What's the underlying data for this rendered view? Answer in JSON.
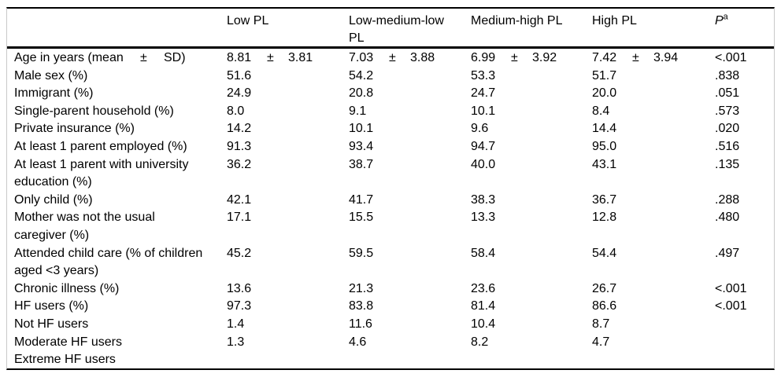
{
  "header": {
    "cols": [
      "Low PL",
      "Low-medium-low PL",
      "Medium-high PL",
      "High PL"
    ],
    "p_label": "P",
    "p_superscript": "a"
  },
  "rows": [
    {
      "type": "meansd",
      "label_main": "Age in years (mean",
      "label_pm": "±",
      "label_sd": "SD)",
      "cells": [
        {
          "mean": "8.81",
          "pm": "±",
          "sd": "3.81"
        },
        {
          "mean": "7.03",
          "pm": "±",
          "sd": "3.88"
        },
        {
          "mean": "6.99",
          "pm": "±",
          "sd": "3.92"
        },
        {
          "mean": "7.42",
          "pm": "±",
          "sd": "3.94"
        }
      ],
      "p": "<.001"
    },
    {
      "label": "Male sex (%)",
      "values": [
        "51.6",
        "54.2",
        "53.3",
        "51.7"
      ],
      "p": ".838"
    },
    {
      "label": "Immigrant (%)",
      "values": [
        "24.9",
        "20.8",
        "24.7",
        "20.0"
      ],
      "p": ".051"
    },
    {
      "label": "Single-parent household (%)",
      "values": [
        "8.0",
        "9.1",
        "10.1",
        "8.4"
      ],
      "p": ".573"
    },
    {
      "label": "Private insurance (%)",
      "values": [
        "14.2",
        "10.1",
        "9.6",
        "14.4"
      ],
      "p": ".020"
    },
    {
      "label": "At least 1 parent employed (%)",
      "values": [
        "91.3",
        "93.4",
        "94.7",
        "95.0"
      ],
      "p": ".516"
    },
    {
      "label": "At least 1 parent with university education (%)",
      "values": [
        "36.2",
        "38.7",
        "40.0",
        "43.1"
      ],
      "p": ".135"
    },
    {
      "label": "Only child (%)",
      "values": [
        "42.1",
        "41.7",
        "38.3",
        "36.7"
      ],
      "p": ".288"
    },
    {
      "label": "Mother was not the usual caregiver (%)",
      "values": [
        "17.1",
        "15.5",
        "13.3",
        "12.8"
      ],
      "p": ".480"
    },
    {
      "label": "Attended child care (% of children aged <3 years)",
      "values": [
        "45.2",
        "59.5",
        "58.4",
        "54.4"
      ],
      "p": ".497"
    },
    {
      "label": "Chronic illness (%)",
      "values": [
        "13.6",
        "21.3",
        "23.6",
        "26.7"
      ],
      "p": "<.001"
    },
    {
      "label": "HF users (%)",
      "values": [
        "97.3",
        "83.8",
        "81.4",
        "86.6"
      ],
      "p": "<.001"
    },
    {
      "label": "Not HF users",
      "values": [
        "1.4",
        "11.6",
        "10.4",
        "8.7"
      ],
      "p": ""
    },
    {
      "label": "Moderate HF users",
      "values": [
        "1.3",
        "4.6",
        "8.2",
        "4.7"
      ],
      "p": ""
    },
    {
      "label": "Extreme HF users",
      "values": [
        "",
        "",
        "",
        ""
      ],
      "p": ""
    }
  ]
}
